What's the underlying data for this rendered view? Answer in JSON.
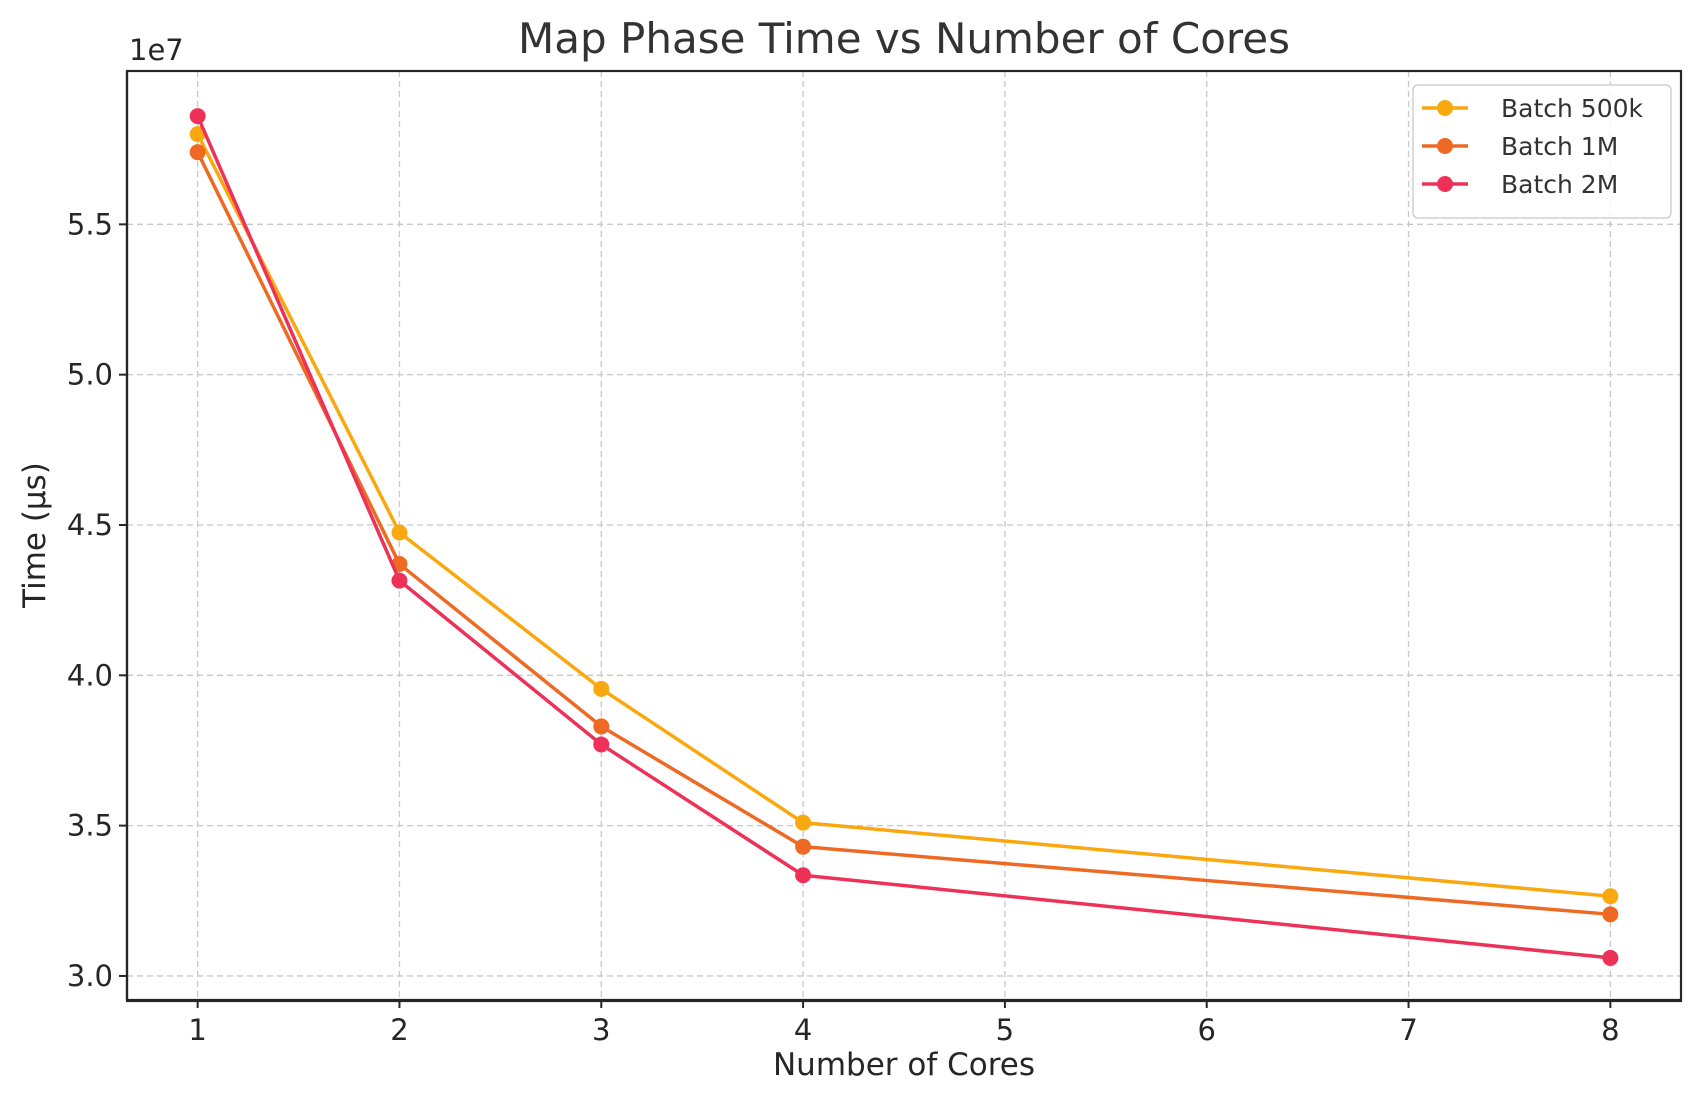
{
  "chart_data": {
    "type": "line",
    "title": "Map Phase Time vs Number of Cores",
    "xlabel": "Number of Cores",
    "ylabel": "Time (μs)",
    "y_offset_label": "1e7",
    "x_ticks": [
      1,
      2,
      3,
      4,
      5,
      6,
      7,
      8
    ],
    "x_tick_labels": [
      "1",
      "2",
      "3",
      "4",
      "5",
      "6",
      "7",
      "8"
    ],
    "y_ticks": [
      30000000,
      35000000,
      40000000,
      45000000,
      50000000,
      55000000
    ],
    "y_tick_labels": [
      "3.0",
      "3.5",
      "4.0",
      "4.5",
      "5.0",
      "5.5"
    ],
    "xlim": [
      0.65,
      8.35
    ],
    "ylim": [
      29200000,
      60100000
    ],
    "grid": true,
    "legend_position": "top-right",
    "x": [
      1,
      2,
      3,
      4,
      8
    ],
    "series": [
      {
        "name": "Batch 500k",
        "color": "#f9a80f",
        "values": [
          58000000,
          44750000,
          39550000,
          35100000,
          32650000
        ]
      },
      {
        "name": "Batch 1M",
        "color": "#ee6a24",
        "values": [
          57400000,
          43700000,
          38300000,
          34300000,
          32050000
        ]
      },
      {
        "name": "Batch 2M",
        "color": "#ee3158",
        "values": [
          58600000,
          43150000,
          37700000,
          33350000,
          30600000
        ]
      }
    ]
  }
}
